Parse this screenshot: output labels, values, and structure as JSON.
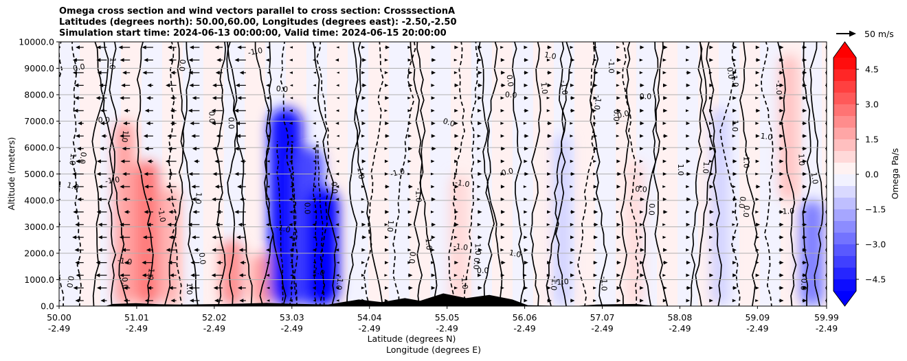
{
  "titles": {
    "line1": "Omega cross section and wind vectors parallel to cross section: CrosssectionA",
    "line2": "Latitudes (degrees north): 50.00,60.00, Longitudes (degrees east): -2.50,-2.50",
    "line3": "Simulation start time: 2024-06-13 00:00:00, Valid time: 2024-06-15 20:00:00"
  },
  "chart_data": {
    "type": "heatmap",
    "title": "Omega cross section and wind vectors parallel to cross section: CrosssectionA",
    "ylabel": "Altitude (meters)",
    "xlabel_line1": "Latitude (degrees N)",
    "xlabel_line2": "Longitude (degrees E)",
    "ylim": [
      0,
      10000
    ],
    "y_ticks": [
      0,
      1000,
      2000,
      3000,
      4000,
      5000,
      6000,
      7000,
      8000,
      9000,
      10000
    ],
    "y_tick_labels": [
      "0.0",
      "1000.0",
      "2000.0",
      "3000.0",
      "4000.0",
      "5000.0",
      "6000.0",
      "7000.0",
      "8000.0",
      "9000.0",
      "10000.0"
    ],
    "xlim": [
      50.0,
      59.99
    ],
    "x_ticks": [
      50.0,
      51.01,
      52.02,
      53.03,
      54.04,
      55.05,
      56.06,
      57.07,
      58.08,
      59.09,
      59.99
    ],
    "x_tick_labels_lat": [
      "50.00",
      "51.01",
      "52.02",
      "53.03",
      "54.04",
      "55.05",
      "56.06",
      "57.07",
      "58.08",
      "59.09",
      "59.99"
    ],
    "x_tick_labels_lon": [
      "-2.49",
      "-2.49",
      "-2.49",
      "-2.49",
      "-2.49",
      "-2.49",
      "-2.49",
      "-2.49",
      "-2.49",
      "-2.49",
      "-2.49"
    ],
    "grid": "horizontal",
    "colorbar": {
      "label": "Omega Pa/s",
      "min": -5.0,
      "max": 5.0,
      "extend": "both",
      "tick_values": [
        4.5,
        3.0,
        1.5,
        0.0,
        -1.5,
        -3.0,
        -4.5
      ],
      "tick_labels": [
        "4.5",
        "3.0",
        "1.5",
        "0.0",
        "−1.5",
        "−3.0",
        "−4.5"
      ],
      "colormap": "bwr"
    },
    "contour_labels": [
      "0.0",
      "1.0",
      "-1.0"
    ],
    "vector_key": "50 m/s",
    "omega_features": [
      {
        "lat": 50.85,
        "alt_bottom": 0,
        "alt_top": 7000,
        "omega": 1.8
      },
      {
        "lat": 51.15,
        "alt_bottom": 0,
        "alt_top": 5500,
        "omega": 2.6
      },
      {
        "lat": 51.45,
        "alt_bottom": 0,
        "alt_top": 4500,
        "omega": 1.5
      },
      {
        "lat": 52.25,
        "alt_bottom": 0,
        "alt_top": 2500,
        "omega": 2.2
      },
      {
        "lat": 52.65,
        "alt_bottom": 0,
        "alt_top": 2000,
        "omega": 2.0
      },
      {
        "lat": 52.95,
        "alt_bottom": 0,
        "alt_top": 7500,
        "omega": -4.8
      },
      {
        "lat": 53.25,
        "alt_bottom": 0,
        "alt_top": 6000,
        "omega": -3.6
      },
      {
        "lat": 53.42,
        "alt_bottom": 0,
        "alt_top": 4500,
        "omega": -4.9
      },
      {
        "lat": 55.2,
        "alt_bottom": 0,
        "alt_top": 5000,
        "omega": 0.8
      },
      {
        "lat": 56.55,
        "alt_bottom": 0,
        "alt_top": 6500,
        "omega": -0.9
      },
      {
        "lat": 57.5,
        "alt_bottom": 0,
        "alt_top": 5500,
        "omega": 0.7
      },
      {
        "lat": 58.6,
        "alt_bottom": 0,
        "alt_top": 7500,
        "omega": -0.9
      },
      {
        "lat": 59.5,
        "alt_bottom": 4000,
        "alt_top": 9500,
        "omega": 1.2
      },
      {
        "lat": 59.8,
        "alt_bottom": 0,
        "alt_top": 4000,
        "omega": -2.5
      }
    ],
    "terrain": [
      {
        "lat": 50.0,
        "height": 0
      },
      {
        "lat": 50.6,
        "height": 0
      },
      {
        "lat": 50.7,
        "height": 80
      },
      {
        "lat": 51.0,
        "height": 110
      },
      {
        "lat": 51.3,
        "height": 70
      },
      {
        "lat": 51.6,
        "height": 60
      },
      {
        "lat": 52.2,
        "height": 80
      },
      {
        "lat": 52.7,
        "height": 120
      },
      {
        "lat": 53.0,
        "height": 90
      },
      {
        "lat": 53.5,
        "height": 60
      },
      {
        "lat": 53.9,
        "height": 250
      },
      {
        "lat": 54.2,
        "height": 150
      },
      {
        "lat": 54.5,
        "height": 300
      },
      {
        "lat": 54.7,
        "height": 200
      },
      {
        "lat": 55.0,
        "height": 480
      },
      {
        "lat": 55.3,
        "height": 300
      },
      {
        "lat": 55.6,
        "height": 420
      },
      {
        "lat": 55.9,
        "height": 250
      },
      {
        "lat": 56.1,
        "height": 30
      },
      {
        "lat": 56.7,
        "height": 0
      },
      {
        "lat": 57.0,
        "height": 60
      },
      {
        "lat": 57.5,
        "height": 80
      },
      {
        "lat": 57.8,
        "height": 0
      },
      {
        "lat": 59.99,
        "height": 0
      }
    ]
  }
}
